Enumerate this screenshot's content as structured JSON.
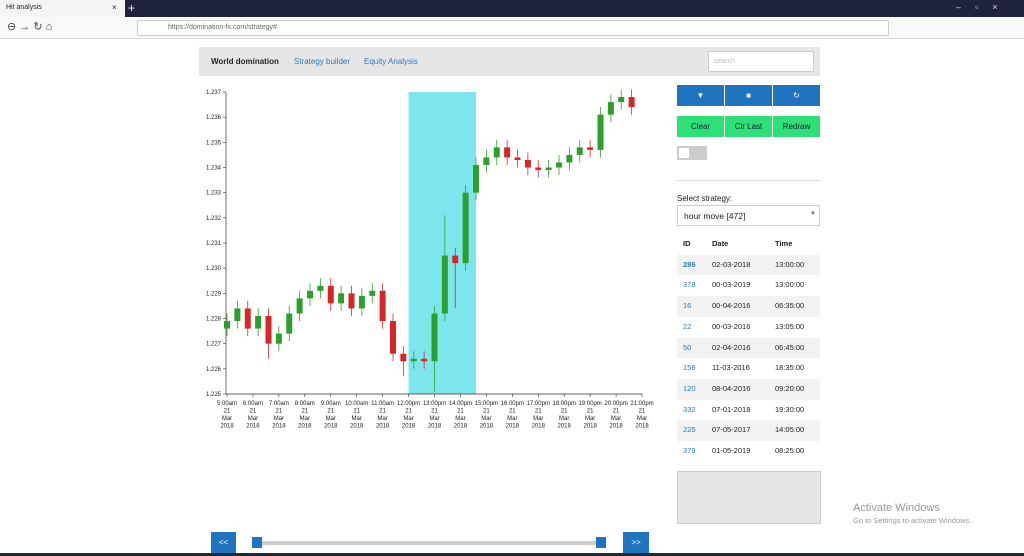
{
  "browser": {
    "tab_title": "Hit analysis",
    "new_tab": "+",
    "url": "https://domination-fx.com/strategy#"
  },
  "nav": {
    "brand": "World domination",
    "links": [
      "Strategy builder",
      "Equity Analysis"
    ],
    "search_placeholder": "search"
  },
  "controls": {
    "draw_buttons": [
      "Clear",
      "Clr Last",
      "Redraw"
    ],
    "select_label": "Select strategy:",
    "select_value": "hour move [472]"
  },
  "table": {
    "header": [
      "ID",
      "Date",
      "Time"
    ],
    "rows": [
      [
        "286",
        "02-03-2018",
        "13:00:00"
      ],
      [
        "378",
        "00-03-2019",
        "13:00:00"
      ],
      [
        "16",
        "00-04-2016",
        "06:35:00"
      ],
      [
        "22",
        "00-03-2016",
        "13:05:00"
      ],
      [
        "50",
        "02-04-2016",
        "06:45:00"
      ],
      [
        "158",
        "11-03-2016",
        "18:35:00"
      ],
      [
        "120",
        "08-04-2016",
        "09:20:00"
      ],
      [
        "332",
        "07-01-2018",
        "19:30:00"
      ],
      [
        "225",
        "07-05-2017",
        "14:05:00"
      ],
      [
        "379",
        "01-05-2019",
        "08:25:00"
      ]
    ]
  },
  "pager": {
    "prev": "<<",
    "next": ">>"
  },
  "watermark": {
    "title": "Activate Windows",
    "subtitle": "Go to Settings to activate Windows."
  },
  "chart_data": {
    "type": "candlestick",
    "up_color": "#2ca02c",
    "down_color": "#d62728",
    "highlight": [
      12,
      14.6
    ],
    "highlight_color": "#7de6ec",
    "xlim": [
      5,
      21
    ],
    "ylim": [
      1.225,
      1.237
    ],
    "xticks": [
      {
        "value": 5,
        "label": "5:00am 21 Mar 2018"
      },
      {
        "value": 6,
        "label": "6:00am 21 Mar 2018"
      },
      {
        "value": 7,
        "label": "7:00am 21 Mar 2018"
      },
      {
        "value": 8,
        "label": "8:00am 21 Mar 2018"
      },
      {
        "value": 9,
        "label": "9:00am 21 Mar 2018"
      },
      {
        "value": 10,
        "label": "10:00am 21 Mar 2018"
      },
      {
        "value": 11,
        "label": "11:00am 21 Mar 2018"
      },
      {
        "value": 12,
        "label": "12:00pm 21 Mar 2018"
      },
      {
        "value": 13,
        "label": "13:00pm 21 Mar 2018"
      },
      {
        "value": 14,
        "label": "14:00pm 21 Mar 2018"
      },
      {
        "value": 15,
        "label": "15:00pm 21 Mar 2018"
      },
      {
        "value": 16,
        "label": "16:00pm 21 Mar 2018"
      },
      {
        "value": 17,
        "label": "17:00pm 21 Mar 2018"
      },
      {
        "value": 18,
        "label": "18:00pm 21 Mar 2018"
      },
      {
        "value": 19,
        "label": "19:00pm 21 Mar 2018"
      },
      {
        "value": 20,
        "label": "20:00pm 21 Mar 2018"
      },
      {
        "value": 21,
        "label": "21:00pm 21 Mar 2018"
      }
    ],
    "yticks": [
      1.225,
      1.226,
      1.227,
      1.228,
      1.229,
      {
        "value": 1.23,
        "label": "1.230"
      },
      1.231,
      1.232,
      1.233,
      1.234,
      1.235,
      1.236,
      1.237
    ],
    "x": [
      5.0,
      5.4,
      5.8,
      6.2,
      6.6,
      7.0,
      7.4,
      7.8,
      8.2,
      8.6,
      9.0,
      9.4,
      9.8,
      10.2,
      10.6,
      11.0,
      11.4,
      11.8,
      12.2,
      12.6,
      13.0,
      13.4,
      13.8,
      14.2,
      14.6,
      15.0,
      15.4,
      15.8,
      16.2,
      16.6,
      17.0,
      17.4,
      17.8,
      18.2,
      18.6,
      19.0,
      19.4,
      19.8,
      20.2,
      20.6
    ],
    "open": [
      1.2276,
      1.2279,
      1.2284,
      1.2276,
      1.2281,
      1.227,
      1.2274,
      1.2282,
      1.2288,
      1.2291,
      1.2293,
      1.2286,
      1.229,
      1.2284,
      1.2289,
      1.2291,
      1.2279,
      1.2266,
      1.2263,
      1.2264,
      1.2263,
      1.2282,
      1.2305,
      1.2302,
      1.233,
      1.2341,
      1.2344,
      1.2348,
      1.2344,
      1.2343,
      1.234,
      1.2339,
      1.234,
      1.2342,
      1.2345,
      1.2348,
      1.2347,
      1.2361,
      1.2366,
      1.2368
    ],
    "high": [
      1.2282,
      1.2287,
      1.2287,
      1.2284,
      1.2284,
      1.2277,
      1.2285,
      1.2291,
      1.2294,
      1.2296,
      1.2296,
      1.2293,
      1.2293,
      1.2292,
      1.2294,
      1.2294,
      1.2282,
      1.2269,
      1.2267,
      1.2267,
      1.2285,
      1.2321,
      1.2308,
      1.2333,
      1.2344,
      1.2347,
      1.2351,
      1.2351,
      1.2347,
      1.2346,
      1.2343,
      1.2343,
      1.2345,
      1.2348,
      1.2351,
      1.2351,
      1.2364,
      1.2369,
      1.2371,
      1.2371
    ],
    "low": [
      1.2273,
      1.2276,
      1.2273,
      1.2273,
      1.2264,
      1.2267,
      1.2271,
      1.2279,
      1.2285,
      1.2288,
      1.2283,
      1.2283,
      1.2281,
      1.2281,
      1.2286,
      1.2276,
      1.2263,
      1.2257,
      1.226,
      1.226,
      1.2251,
      1.2279,
      1.2284,
      1.2299,
      1.2327,
      1.2338,
      1.2341,
      1.2341,
      1.234,
      1.2337,
      1.2336,
      1.2336,
      1.2337,
      1.2339,
      1.2342,
      1.2344,
      1.2344,
      1.2358,
      1.2363,
      1.2361
    ],
    "close": [
      1.2279,
      1.2284,
      1.2276,
      1.2281,
      1.227,
      1.2274,
      1.2282,
      1.2288,
      1.2291,
      1.2293,
      1.2286,
      1.229,
      1.2284,
      1.2289,
      1.2291,
      1.2279,
      1.2266,
      1.2263,
      1.2264,
      1.2263,
      1.2282,
      1.2305,
      1.2302,
      1.233,
      1.2341,
      1.2344,
      1.2348,
      1.2344,
      1.2343,
      1.234,
      1.2339,
      1.234,
      1.2342,
      1.2345,
      1.2348,
      1.2347,
      1.2361,
      1.2366,
      1.2368,
      1.2364
    ]
  }
}
